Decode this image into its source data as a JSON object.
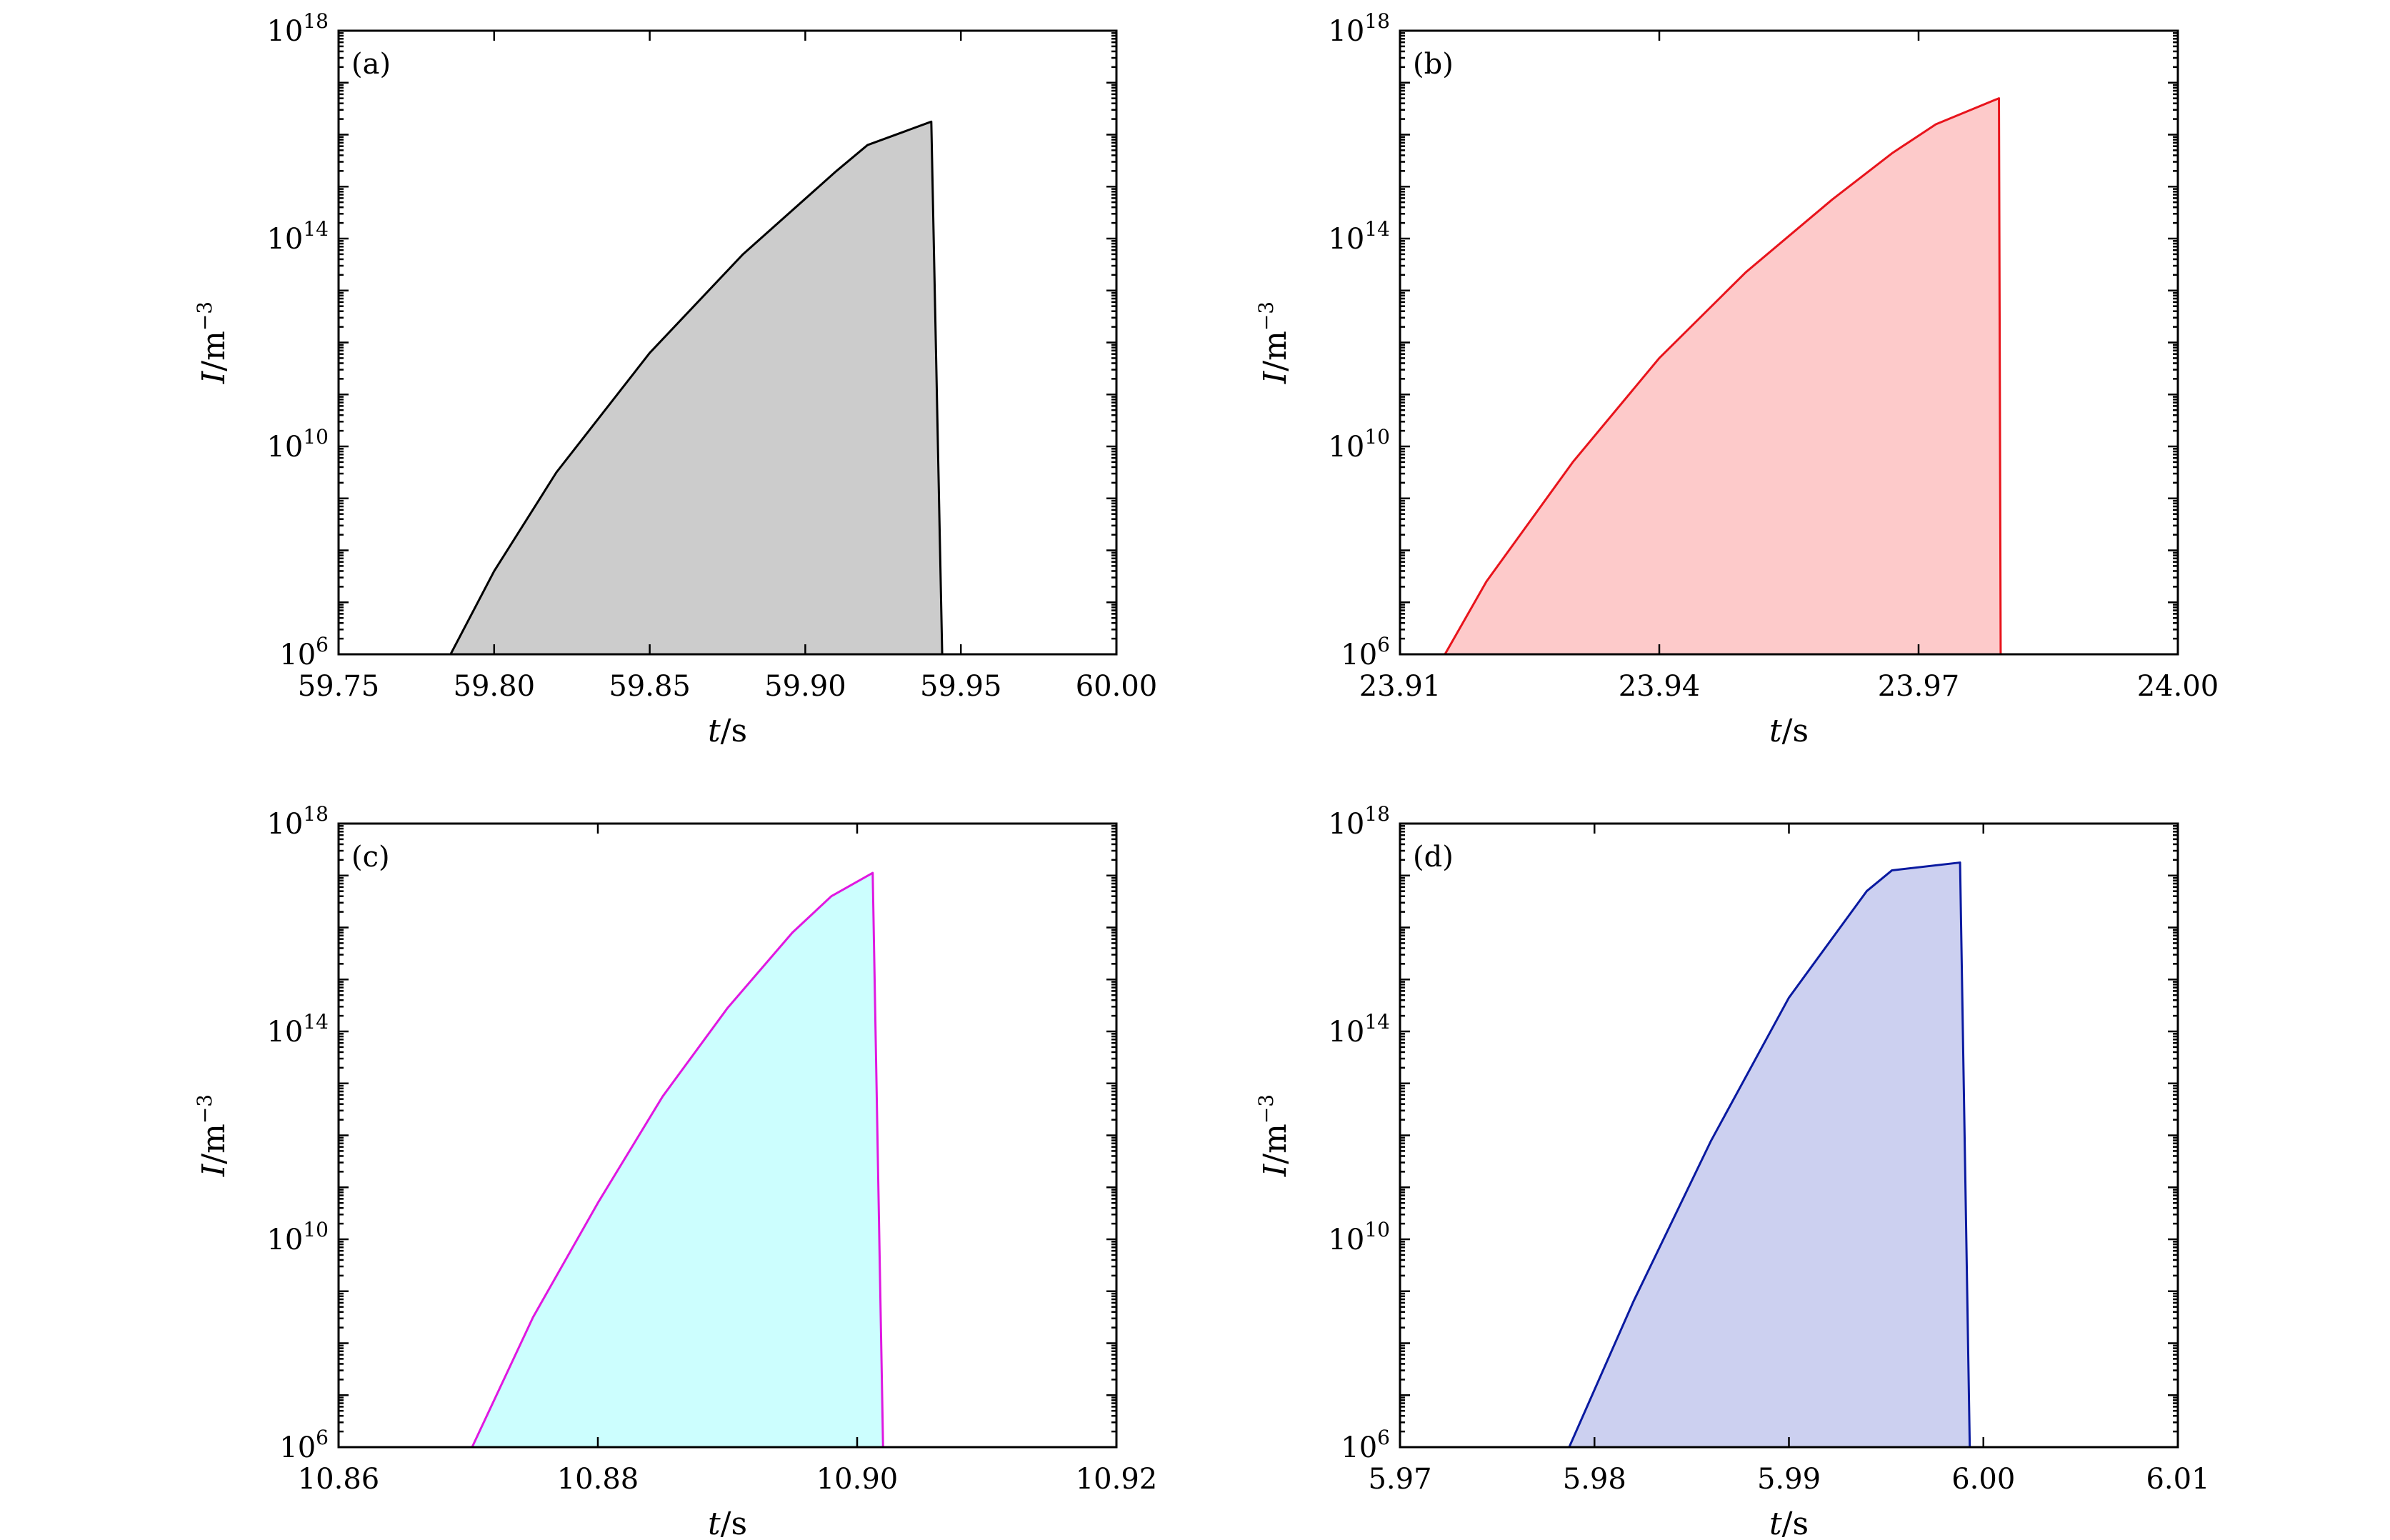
{
  "chart_data": [
    {
      "type": "area",
      "panel_label": "(a)",
      "x": [
        59.786,
        59.8,
        59.82,
        59.85,
        59.88,
        59.91,
        59.92,
        59.9405,
        59.944
      ],
      "y_log10": [
        6.0,
        7.6,
        9.5,
        11.8,
        13.7,
        15.3,
        15.8,
        16.25,
        6.0
      ],
      "xlim": [
        59.75,
        60.0
      ],
      "xticks": [
        "59.75",
        "59.80",
        "59.85",
        "59.90",
        "59.95",
        "60.00"
      ],
      "yscale": "log",
      "ylim": [
        1000000.0,
        1e+18
      ],
      "yticks": [
        {
          "base": "10",
          "exp": "6"
        },
        {
          "base": "10",
          "exp": "10"
        },
        {
          "base": "10",
          "exp": "14"
        },
        {
          "base": "10",
          "exp": "18"
        }
      ],
      "xlabel": {
        "var": "t",
        "unit": "/s"
      },
      "ylabel": {
        "var": "I",
        "unit": "/m",
        "exp": "−3"
      },
      "line_color": "#000000",
      "fill_color": "#cccccc"
    },
    {
      "type": "area",
      "panel_label": "(b)",
      "x": [
        23.9152,
        23.92,
        23.93,
        23.94,
        23.95,
        23.96,
        23.967,
        23.972,
        23.9793,
        23.9795
      ],
      "y_log10": [
        6.0,
        7.4,
        9.7,
        11.7,
        13.35,
        14.75,
        15.65,
        16.2,
        16.7,
        6.0
      ],
      "xlim": [
        23.91,
        24.0
      ],
      "xticks": [
        "23.91",
        "23.94",
        "23.97",
        "24.00"
      ],
      "yscale": "log",
      "ylim": [
        1000000.0,
        1e+18
      ],
      "yticks": [
        {
          "base": "10",
          "exp": "6"
        },
        {
          "base": "10",
          "exp": "10"
        },
        {
          "base": "10",
          "exp": "14"
        },
        {
          "base": "10",
          "exp": "18"
        }
      ],
      "xlabel": {
        "var": "t",
        "unit": "/s"
      },
      "ylabel": {
        "var": "I",
        "unit": "/m",
        "exp": "−3"
      },
      "line_color": "#e8141c",
      "fill_color": "#fdcaca"
    },
    {
      "type": "area",
      "panel_label": "(c)",
      "x": [
        10.8703,
        10.875,
        10.88,
        10.885,
        10.89,
        10.895,
        10.898,
        10.9012,
        10.902
      ],
      "y_log10": [
        6.0,
        8.5,
        10.7,
        12.75,
        14.45,
        15.9,
        16.6,
        17.05,
        6.0
      ],
      "xlim": [
        10.86,
        10.92
      ],
      "xticks": [
        "10.86",
        "10.88",
        "10.90",
        "10.92"
      ],
      "yscale": "log",
      "ylim": [
        1000000.0,
        1e+18
      ],
      "yticks": [
        {
          "base": "10",
          "exp": "6"
        },
        {
          "base": "10",
          "exp": "10"
        },
        {
          "base": "10",
          "exp": "14"
        },
        {
          "base": "10",
          "exp": "18"
        }
      ],
      "xlabel": {
        "var": "t",
        "unit": "/s"
      },
      "ylabel": {
        "var": "I",
        "unit": "/m",
        "exp": "−3"
      },
      "line_color": "#e018e0",
      "fill_color": "#ccfefe"
    },
    {
      "type": "area",
      "panel_label": "(d)",
      "x": [
        5.9787,
        5.982,
        5.986,
        5.99,
        5.994,
        5.9953,
        5.9988,
        5.9993
      ],
      "y_log10": [
        6.0,
        8.8,
        11.9,
        14.65,
        16.7,
        17.1,
        17.25,
        6.0
      ],
      "xlim": [
        5.97,
        6.01
      ],
      "xticks": [
        "5.97",
        "5.98",
        "5.99",
        "6.00",
        "6.01"
      ],
      "yscale": "log",
      "ylim": [
        1000000.0,
        1e+18
      ],
      "yticks": [
        {
          "base": "10",
          "exp": "6"
        },
        {
          "base": "10",
          "exp": "10"
        },
        {
          "base": "10",
          "exp": "14"
        },
        {
          "base": "10",
          "exp": "18"
        }
      ],
      "xlabel": {
        "var": "t",
        "unit": "/s"
      },
      "ylabel": {
        "var": "I",
        "unit": "/m",
        "exp": "−3"
      },
      "line_color": "#0a1aa0",
      "fill_color": "#ccd0f0"
    }
  ]
}
